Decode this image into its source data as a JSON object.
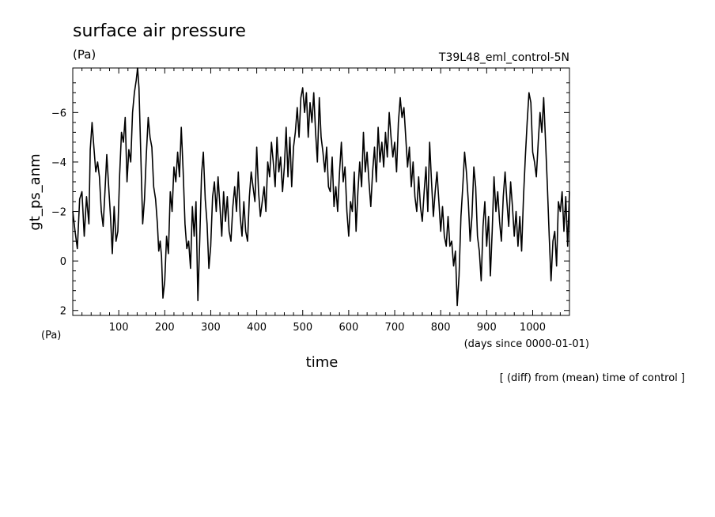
{
  "chart_data": {
    "type": "line",
    "title": "surface air pressure",
    "title_units": "(Pa)",
    "experiment": "T39L48_eml_control-5N",
    "ylabel": "gt_ps_anm",
    "yunits": "(Pa)",
    "xlabel": "time",
    "xunits": "(days since 0000-01-01)",
    "footnote": "[ (diff) from (mean) time of control ]",
    "xlim": [
      0,
      1080
    ],
    "ylim": [
      2.2,
      -7.8
    ],
    "y_inverted": true,
    "grid": false,
    "x_ticks": [
      100,
      200,
      300,
      400,
      500,
      600,
      700,
      800,
      900,
      1000
    ],
    "y_ticks": [
      2,
      0,
      -2,
      -4,
      -6
    ],
    "series": [
      {
        "color": "#000000",
        "points": [
          [
            0,
            -2.0
          ],
          [
            5,
            -1.2
          ],
          [
            10,
            -0.5
          ],
          [
            15,
            -2.5
          ],
          [
            20,
            -2.8
          ],
          [
            25,
            -1.0
          ],
          [
            30,
            -2.6
          ],
          [
            35,
            -1.5
          ],
          [
            38,
            -4.5
          ],
          [
            42,
            -5.6
          ],
          [
            46,
            -4.6
          ],
          [
            50,
            -3.6
          ],
          [
            54,
            -4.0
          ],
          [
            58,
            -3.4
          ],
          [
            62,
            -2.0
          ],
          [
            66,
            -1.4
          ],
          [
            70,
            -2.8
          ],
          [
            74,
            -4.3
          ],
          [
            78,
            -3.0
          ],
          [
            82,
            -1.8
          ],
          [
            86,
            -0.3
          ],
          [
            90,
            -2.2
          ],
          [
            94,
            -0.8
          ],
          [
            98,
            -1.2
          ],
          [
            102,
            -3.5
          ],
          [
            106,
            -5.2
          ],
          [
            110,
            -4.8
          ],
          [
            114,
            -5.8
          ],
          [
            118,
            -3.2
          ],
          [
            122,
            -4.5
          ],
          [
            126,
            -4.0
          ],
          [
            130,
            -6.0
          ],
          [
            134,
            -6.8
          ],
          [
            138,
            -7.3
          ],
          [
            141,
            -7.8
          ],
          [
            144,
            -7.0
          ],
          [
            148,
            -4.2
          ],
          [
            152,
            -1.5
          ],
          [
            156,
            -2.5
          ],
          [
            160,
            -4.3
          ],
          [
            164,
            -5.8
          ],
          [
            168,
            -5.0
          ],
          [
            172,
            -4.6
          ],
          [
            176,
            -3.0
          ],
          [
            180,
            -2.5
          ],
          [
            184,
            -1.5
          ],
          [
            187,
            -0.4
          ],
          [
            190,
            -0.8
          ],
          [
            193,
            -0.2
          ],
          [
            196,
            1.5
          ],
          [
            200,
            0.8
          ],
          [
            204,
            -1.0
          ],
          [
            208,
            -0.3
          ],
          [
            212,
            -2.8
          ],
          [
            216,
            -2.0
          ],
          [
            220,
            -3.8
          ],
          [
            224,
            -3.2
          ],
          [
            228,
            -4.4
          ],
          [
            232,
            -3.4
          ],
          [
            236,
            -5.4
          ],
          [
            240,
            -3.6
          ],
          [
            244,
            -1.5
          ],
          [
            248,
            -0.5
          ],
          [
            252,
            -0.8
          ],
          [
            256,
            0.3
          ],
          [
            260,
            -2.2
          ],
          [
            264,
            -1.0
          ],
          [
            268,
            -2.4
          ],
          [
            272,
            1.6
          ],
          [
            276,
            -0.8
          ],
          [
            280,
            -3.5
          ],
          [
            284,
            -4.4
          ],
          [
            288,
            -2.5
          ],
          [
            292,
            -1.5
          ],
          [
            296,
            0.3
          ],
          [
            300,
            -0.6
          ],
          [
            304,
            -2.6
          ],
          [
            308,
            -3.2
          ],
          [
            312,
            -2.0
          ],
          [
            316,
            -3.4
          ],
          [
            320,
            -2.2
          ],
          [
            324,
            -1.0
          ],
          [
            328,
            -2.8
          ],
          [
            332,
            -1.6
          ],
          [
            336,
            -2.6
          ],
          [
            340,
            -1.2
          ],
          [
            344,
            -0.8
          ],
          [
            348,
            -2.2
          ],
          [
            352,
            -3.0
          ],
          [
            356,
            -2.0
          ],
          [
            360,
            -3.6
          ],
          [
            364,
            -1.8
          ],
          [
            368,
            -1.0
          ],
          [
            372,
            -2.4
          ],
          [
            376,
            -1.2
          ],
          [
            380,
            -0.8
          ],
          [
            384,
            -2.6
          ],
          [
            388,
            -3.6
          ],
          [
            392,
            -3.0
          ],
          [
            396,
            -2.4
          ],
          [
            400,
            -4.6
          ],
          [
            404,
            -2.8
          ],
          [
            408,
            -1.8
          ],
          [
            412,
            -2.4
          ],
          [
            416,
            -3.0
          ],
          [
            420,
            -2.0
          ],
          [
            424,
            -4.0
          ],
          [
            428,
            -3.4
          ],
          [
            432,
            -4.8
          ],
          [
            436,
            -4.0
          ],
          [
            440,
            -3.0
          ],
          [
            444,
            -5.0
          ],
          [
            448,
            -3.6
          ],
          [
            452,
            -4.2
          ],
          [
            456,
            -2.8
          ],
          [
            460,
            -3.8
          ],
          [
            464,
            -5.4
          ],
          [
            468,
            -3.4
          ],
          [
            472,
            -5.0
          ],
          [
            476,
            -3.0
          ],
          [
            480,
            -4.6
          ],
          [
            484,
            -5.2
          ],
          [
            488,
            -6.2
          ],
          [
            492,
            -5.0
          ],
          [
            496,
            -6.6
          ],
          [
            500,
            -7.0
          ],
          [
            504,
            -6.0
          ],
          [
            508,
            -6.8
          ],
          [
            512,
            -5.0
          ],
          [
            516,
            -6.4
          ],
          [
            520,
            -5.6
          ],
          [
            524,
            -6.8
          ],
          [
            528,
            -5.2
          ],
          [
            532,
            -4.0
          ],
          [
            536,
            -6.6
          ],
          [
            540,
            -5.0
          ],
          [
            544,
            -4.4
          ],
          [
            548,
            -3.6
          ],
          [
            552,
            -4.6
          ],
          [
            556,
            -3.0
          ],
          [
            560,
            -2.8
          ],
          [
            564,
            -4.2
          ],
          [
            568,
            -2.2
          ],
          [
            572,
            -3.0
          ],
          [
            576,
            -2.0
          ],
          [
            580,
            -3.6
          ],
          [
            584,
            -4.8
          ],
          [
            588,
            -3.2
          ],
          [
            592,
            -3.8
          ],
          [
            596,
            -2.0
          ],
          [
            600,
            -1.0
          ],
          [
            604,
            -2.4
          ],
          [
            608,
            -2.0
          ],
          [
            612,
            -3.6
          ],
          [
            616,
            -1.2
          ],
          [
            620,
            -2.8
          ],
          [
            624,
            -4.0
          ],
          [
            628,
            -3.0
          ],
          [
            632,
            -5.2
          ],
          [
            636,
            -3.6
          ],
          [
            640,
            -4.4
          ],
          [
            644,
            -3.2
          ],
          [
            648,
            -2.2
          ],
          [
            652,
            -3.6
          ],
          [
            656,
            -4.6
          ],
          [
            660,
            -3.2
          ],
          [
            664,
            -5.4
          ],
          [
            668,
            -4.0
          ],
          [
            672,
            -4.8
          ],
          [
            676,
            -3.8
          ],
          [
            680,
            -5.2
          ],
          [
            684,
            -4.2
          ],
          [
            688,
            -6.0
          ],
          [
            692,
            -5.0
          ],
          [
            696,
            -4.2
          ],
          [
            700,
            -4.8
          ],
          [
            704,
            -3.6
          ],
          [
            708,
            -5.6
          ],
          [
            712,
            -6.6
          ],
          [
            716,
            -5.8
          ],
          [
            720,
            -6.2
          ],
          [
            724,
            -5.0
          ],
          [
            728,
            -3.8
          ],
          [
            732,
            -4.6
          ],
          [
            736,
            -3.0
          ],
          [
            740,
            -4.0
          ],
          [
            744,
            -2.6
          ],
          [
            748,
            -2.0
          ],
          [
            752,
            -3.4
          ],
          [
            756,
            -2.2
          ],
          [
            760,
            -1.6
          ],
          [
            764,
            -2.8
          ],
          [
            768,
            -3.8
          ],
          [
            772,
            -2.0
          ],
          [
            776,
            -4.8
          ],
          [
            780,
            -3.2
          ],
          [
            784,
            -1.8
          ],
          [
            788,
            -2.8
          ],
          [
            792,
            -3.6
          ],
          [
            796,
            -2.4
          ],
          [
            800,
            -1.2
          ],
          [
            804,
            -2.2
          ],
          [
            808,
            -1.0
          ],
          [
            812,
            -0.6
          ],
          [
            816,
            -1.8
          ],
          [
            820,
            -0.6
          ],
          [
            824,
            -0.8
          ],
          [
            828,
            0.2
          ],
          [
            832,
            -0.4
          ],
          [
            836,
            1.8
          ],
          [
            840,
            0.6
          ],
          [
            844,
            -1.8
          ],
          [
            848,
            -3.0
          ],
          [
            852,
            -4.4
          ],
          [
            856,
            -3.6
          ],
          [
            860,
            -2.4
          ],
          [
            864,
            -0.8
          ],
          [
            868,
            -1.8
          ],
          [
            872,
            -3.8
          ],
          [
            876,
            -3.0
          ],
          [
            880,
            -1.0
          ],
          [
            884,
            -0.4
          ],
          [
            888,
            0.8
          ],
          [
            892,
            -1.4
          ],
          [
            896,
            -2.4
          ],
          [
            900,
            -0.6
          ],
          [
            904,
            -1.8
          ],
          [
            908,
            0.6
          ],
          [
            912,
            -1.2
          ],
          [
            916,
            -3.4
          ],
          [
            920,
            -2.0
          ],
          [
            924,
            -2.8
          ],
          [
            928,
            -1.6
          ],
          [
            932,
            -0.8
          ],
          [
            936,
            -2.6
          ],
          [
            940,
            -3.6
          ],
          [
            944,
            -2.4
          ],
          [
            948,
            -1.4
          ],
          [
            952,
            -3.2
          ],
          [
            956,
            -2.2
          ],
          [
            960,
            -1.0
          ],
          [
            964,
            -2.0
          ],
          [
            968,
            -0.6
          ],
          [
            972,
            -1.8
          ],
          [
            976,
            -0.4
          ],
          [
            980,
            -2.6
          ],
          [
            984,
            -4.2
          ],
          [
            988,
            -5.6
          ],
          [
            992,
            -6.8
          ],
          [
            996,
            -6.4
          ],
          [
            1000,
            -4.4
          ],
          [
            1004,
            -4.0
          ],
          [
            1008,
            -3.4
          ],
          [
            1012,
            -4.8
          ],
          [
            1016,
            -6.0
          ],
          [
            1020,
            -5.2
          ],
          [
            1024,
            -6.6
          ],
          [
            1028,
            -4.8
          ],
          [
            1032,
            -3.0
          ],
          [
            1036,
            -1.0
          ],
          [
            1040,
            0.8
          ],
          [
            1044,
            -0.8
          ],
          [
            1048,
            -1.2
          ],
          [
            1052,
            0.2
          ],
          [
            1056,
            -2.4
          ],
          [
            1060,
            -2.0
          ],
          [
            1064,
            -2.8
          ],
          [
            1068,
            -1.2
          ],
          [
            1072,
            -2.6
          ],
          [
            1076,
            -0.6
          ],
          [
            1080,
            -2.8
          ]
        ]
      }
    ]
  }
}
